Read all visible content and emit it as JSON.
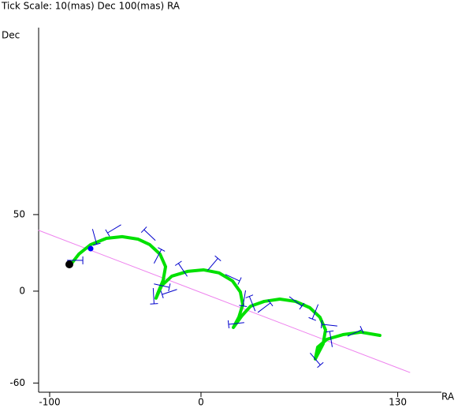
{
  "chart_data": {
    "type": "line",
    "title": "Tick Scale: 10(mas) Dec 100(mas) RA",
    "y_label": "Dec",
    "x_label": "RA",
    "xlim": [
      -107.3,
      158.9
    ],
    "ylim": [
      -66,
      172.1
    ],
    "xticks": [
      -100,
      0,
      130
    ],
    "yticks": [
      -60,
      0,
      50
    ],
    "track": {
      "color": "#00e000",
      "x": [
        -86,
        -80.7,
        -72.9,
        -62.5,
        -52.1,
        -41.7,
        -33.9,
        -27.1,
        -23.4,
        -25.0,
        -28.6,
        -29.7,
        -26.0,
        -19.3,
        -8.9,
        1.6,
        12.0,
        20.8,
        26.0,
        27.6,
        25.0,
        21.4,
        27.1,
        32.8,
        41.7,
        52.1,
        62.5,
        71.9,
        78.6,
        82.3,
        80.7,
        75.5,
        77.1,
        83.3,
        93.8,
        105.7,
        118.2
      ],
      "y": [
        17.5,
        24.2,
        30.4,
        34.5,
        35.6,
        34.0,
        30.4,
        24.2,
        16.0,
        7.2,
        -1.5,
        -4.6,
        3.6,
        9.8,
        12.9,
        13.9,
        11.9,
        6.7,
        -0.5,
        -8.8,
        -17.0,
        -23.7,
        -16.0,
        -9.8,
        -6.7,
        -5.2,
        -6.7,
        -10.8,
        -17.0,
        -25.3,
        -34.5,
        -44.3,
        -36.6,
        -31.4,
        -28.4,
        -26.8,
        -28.9
      ]
    },
    "reference_line": {
      "color": "#ee82ee",
      "x": [
        -107.3,
        138
      ],
      "y": [
        39.7,
        -53.1
      ]
    },
    "observations": {
      "color": "#0000cc",
      "x": [
        -83.3,
        -70.3,
        -57.3,
        -33.9,
        -28.6,
        -26.0,
        -31.3,
        -20.8,
        -12.0,
        7.8,
        20.8,
        28.6,
        23.4,
        33.9,
        41.7,
        62.5,
        75.5,
        84.9,
        85.9,
        101.6,
        75.5
      ],
      "y": [
        20.1,
        35.6,
        40.7,
        36.6,
        22.7,
        3.6,
        -3.1,
        -0.5,
        13.9,
        17.5,
        8.8,
        -4.6,
        -21.1,
        -8.2,
        -10.8,
        -6.7,
        -13.4,
        -22.2,
        -31.4,
        -27.3,
        -44.3
      ]
    },
    "points": {
      "colors": [
        "#000000",
        "#0000ff"
      ],
      "x": [
        -87,
        -72.9
      ],
      "y": [
        17.5,
        27.8
      ]
    }
  }
}
